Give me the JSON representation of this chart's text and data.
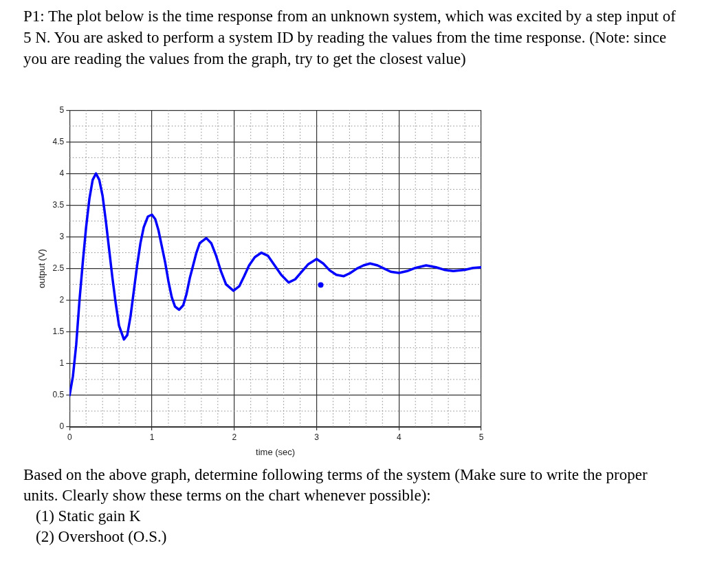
{
  "chart_data": {
    "type": "line",
    "title": "P1: The plot below is the time response from an unknown system, which was excited by a step input of 5 N. You are asked to perform a system ID by reading the values from the time response. (Note: since you are reading the values from the graph, try to get the closest value)",
    "xlabel": "time (sec)",
    "ylabel": "output (V)",
    "xlim": [
      0,
      5
    ],
    "xticks": [
      0,
      1,
      2,
      3,
      4,
      5
    ],
    "ylim": [
      0,
      5
    ],
    "yticks": [
      0,
      0.5,
      1,
      1.5,
      2,
      2.5,
      3,
      3.5,
      4,
      4.5,
      5
    ],
    "grid": true,
    "legend": false,
    "line_style": "solid",
    "series": [
      {
        "color": "#0000ff",
        "x": [
          0,
          0.04,
          0.08,
          0.12,
          0.16,
          0.2,
          0.24,
          0.28,
          0.32,
          0.36,
          0.4,
          0.44,
          0.48,
          0.52,
          0.56,
          0.6,
          0.66,
          0.7,
          0.74,
          0.78,
          0.82,
          0.86,
          0.9,
          0.95,
          1.0,
          1.04,
          1.08,
          1.12,
          1.16,
          1.2,
          1.24,
          1.28,
          1.33,
          1.38,
          1.42,
          1.46,
          1.5,
          1.54,
          1.58,
          1.66,
          1.72,
          1.78,
          1.84,
          1.9,
          1.99,
          2.06,
          2.12,
          2.18,
          2.25,
          2.33,
          2.41,
          2.49,
          2.57,
          2.66,
          2.74,
          2.82,
          2.9,
          3.0,
          3.08,
          3.16,
          3.24,
          3.33,
          3.41,
          3.49,
          3.57,
          3.65,
          3.74,
          3.82,
          3.9,
          4.0,
          4.1,
          4.2,
          4.33,
          4.45,
          4.55,
          4.66,
          4.8,
          4.9,
          5.0
        ],
        "values": [
          0.5,
          0.8,
          1.3,
          2.0,
          2.6,
          3.15,
          3.6,
          3.9,
          4.0,
          3.9,
          3.65,
          3.25,
          2.8,
          2.35,
          1.95,
          1.6,
          1.38,
          1.45,
          1.75,
          2.15,
          2.55,
          2.9,
          3.15,
          3.32,
          3.35,
          3.28,
          3.1,
          2.85,
          2.6,
          2.3,
          2.05,
          1.9,
          1.85,
          1.92,
          2.1,
          2.35,
          2.55,
          2.75,
          2.9,
          2.98,
          2.9,
          2.7,
          2.45,
          2.25,
          2.15,
          2.22,
          2.38,
          2.55,
          2.68,
          2.75,
          2.7,
          2.55,
          2.4,
          2.28,
          2.33,
          2.45,
          2.57,
          2.65,
          2.58,
          2.47,
          2.4,
          2.38,
          2.43,
          2.5,
          2.55,
          2.58,
          2.55,
          2.5,
          2.45,
          2.43,
          2.46,
          2.51,
          2.55,
          2.52,
          2.48,
          2.46,
          2.48,
          2.51,
          2.52
        ]
      },
      {
        "type": "scatter",
        "color": "#0000ff",
        "x": [
          3.05
        ],
        "values": [
          2.24
        ]
      }
    ],
    "annotations": [
      "Based on the above graph, determine following terms of the system (Make sure to write the proper units. Clearly show these terms on the chart whenever possible):",
      "(1) Static gain K",
      "(2) Overshoot (O.S.)"
    ]
  }
}
